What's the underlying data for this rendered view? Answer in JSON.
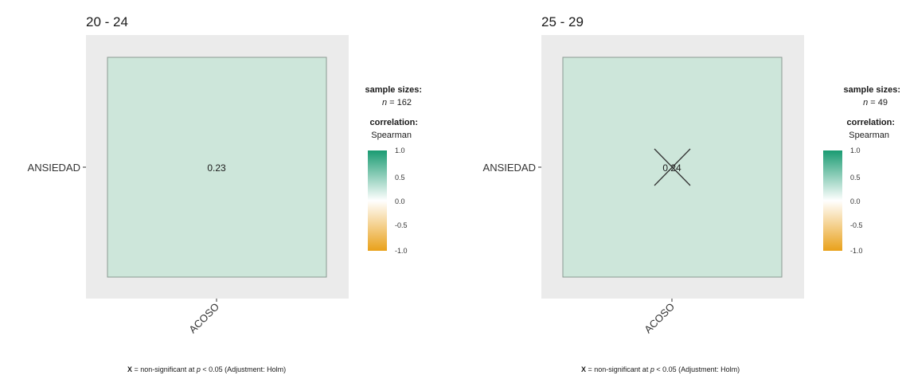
{
  "chart_data": [
    {
      "type": "heatmap",
      "title": "20 - 24",
      "rows": [
        "ANSIEDAD"
      ],
      "columns": [
        "ACOSO"
      ],
      "values": [
        [
          0.23
        ]
      ],
      "cell_labels": [
        "0.23"
      ],
      "non_significant": [
        [
          false
        ]
      ],
      "legend": {
        "sample_sizes_label": "sample sizes:",
        "n_prefix": "n",
        "n_text": " = 162",
        "n": 162,
        "correlation_label": "correlation:",
        "method": "Spearman",
        "ticks": [
          "1.0",
          "0.5",
          "0.0",
          "-0.5",
          "-1.0"
        ],
        "range": [
          -1,
          1
        ]
      },
      "footnote": {
        "marker": "X",
        "text_before": " = non-significant at ",
        "p": "p",
        "text_after": " < 0.05 (Adjustment: Holm)"
      }
    },
    {
      "type": "heatmap",
      "title": "25 - 29",
      "rows": [
        "ANSIEDAD"
      ],
      "columns": [
        "ACOSO"
      ],
      "values": [
        [
          0.24
        ]
      ],
      "cell_labels": [
        "0.24"
      ],
      "non_significant": [
        [
          true
        ]
      ],
      "legend": {
        "sample_sizes_label": "sample sizes:",
        "n_prefix": "n",
        "n_text": " = 49",
        "n": 49,
        "correlation_label": "correlation:",
        "method": "Spearman",
        "ticks": [
          "1.0",
          "0.5",
          "0.0",
          "-0.5",
          "-1.0"
        ],
        "range": [
          -1,
          1
        ]
      },
      "footnote": {
        "marker": "X",
        "text_before": " = non-significant at ",
        "p": "p",
        "text_after": " < 0.05 (Adjustment: Holm)"
      }
    }
  ],
  "colors": {
    "panel_bg": "#ebebeb",
    "cell_fill": "#cde6da",
    "cell_border": "#8a9a92",
    "high": "#1a9b72",
    "mid": "#ffffff",
    "low": "#e9a11a",
    "cross": "#333333"
  }
}
